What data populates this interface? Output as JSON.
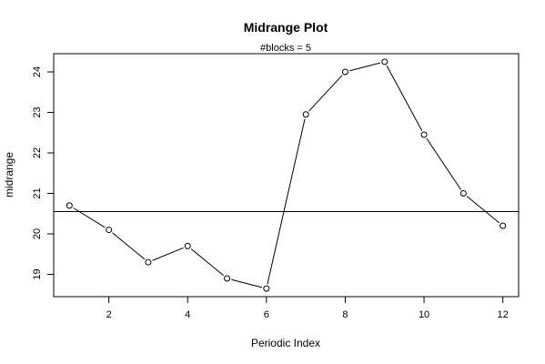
{
  "chart_data": {
    "type": "line",
    "title": "Midrange Plot",
    "subtitle": "#blocks =  5",
    "xlabel": "Periodic Index",
    "ylabel": "midrange",
    "x": [
      1,
      2,
      3,
      4,
      5,
      6,
      7,
      8,
      9,
      10,
      11,
      12
    ],
    "series": [
      {
        "values": [
          20.7,
          20.1,
          19.3,
          19.7,
          18.9,
          18.65,
          22.95,
          24.0,
          24.25,
          22.45,
          21.0,
          20.2
        ]
      }
    ],
    "reference_line": {
      "y": 20.55
    },
    "xlim": [
      0.6,
      12.4
    ],
    "ylim": [
      18.45,
      24.45
    ],
    "x_ticks": [
      "2",
      "4",
      "6",
      "8",
      "10",
      "12"
    ],
    "y_ticks": [
      "19",
      "20",
      "21",
      "22",
      "23",
      "24"
    ],
    "grid": false,
    "marker": "open-circle",
    "colors": {
      "line": "#000000",
      "background": "#ffffff"
    }
  }
}
